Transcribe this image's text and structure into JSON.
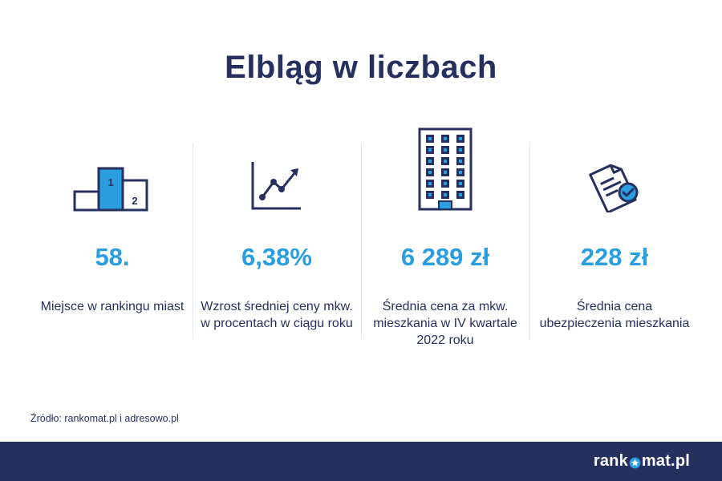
{
  "title": "Elbląg w liczbach",
  "stats": [
    {
      "icon": "podium-icon",
      "value": "58.",
      "desc": "Miejsce w rankingu miast",
      "podium": {
        "first": "1",
        "second": "2"
      }
    },
    {
      "icon": "trend-chart-icon",
      "value": "6,38%",
      "desc": "Wzrost średniej ceny mkw. w procentach w ciągu roku"
    },
    {
      "icon": "building-icon",
      "value": "6 289 zł",
      "desc": "Średnia cena za mkw. mieszkania w IV kwartale 2022 roku"
    },
    {
      "icon": "insurance-document-icon",
      "value": "228 zł",
      "desc": "Średnia cena ubezpieczenia mieszkania"
    }
  ],
  "source": "Źródło: rankomat.pl i adresowo.pl",
  "footer": {
    "logo_left": "rank",
    "logo_right": "mat.pl"
  },
  "colors": {
    "navy": "#26305f",
    "accent": "#2a9ee0",
    "background": "#ffffff"
  }
}
